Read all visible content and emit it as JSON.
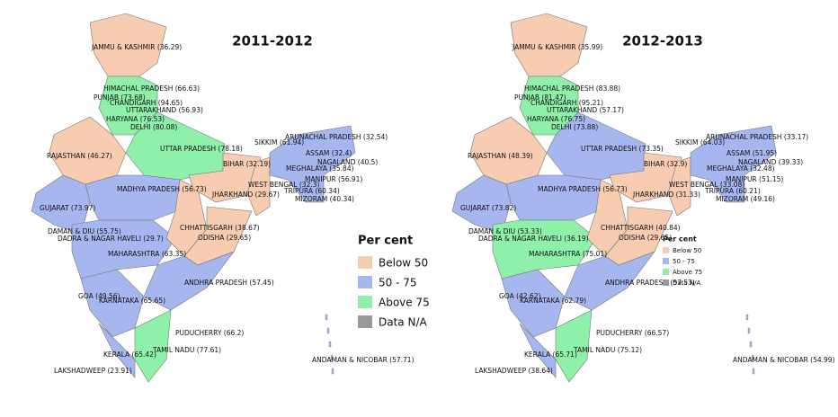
{
  "maps": [
    {
      "title": "2011-2012",
      "labels": [
        "JAMMU & KASHMIR (36.29)",
        "HIMACHAL PRADESH (66.63)",
        "PUNJAB (73.68)",
        "CHANDIGARH (94.65)",
        "UTTARAKHAND (56.93)",
        "HARYANA (76.53)",
        "DELHI (80.08)",
        "RAJASTHAN (46.27)",
        "UTTAR PRADESH (78.18)",
        "SIKKIM (61.94)",
        "ARUNACHAL PRADESH (32.54)",
        "ASSAM (32.4)",
        "BIHAR (32.19)",
        "MEGHALAYA (35.84)",
        "NAGALAND (40.5)",
        "MADHYA PRADESH (56.73)",
        "WEST BENGAL (32.3)",
        "MANIPUR (56.91)",
        "JHARKHAND (29.67)",
        "TRIPURA (60.34)",
        "MIZORAM (40.34)",
        "GUJARAT (73.97)",
        "CHHATTISGARH (38.67)",
        "DAMAN & DIU (55.75)",
        "DADRA & NAGAR HAVELI (29.7)",
        "ODISHA (29.65)",
        "MAHARASHTRA (63.35)",
        "ANDHRA PRADESH (57.45)",
        "GOA (49.56)",
        "KARNATAKA (65.65)",
        "PUDUCHERRY (66.2)",
        "TAMIL NADU (77.61)",
        "KERALA (65.42)",
        "LAKSHADWEEP (23.91)",
        "ANDAMAN & NICOBAR (57.71)"
      ],
      "legend": {
        "title": "Per cent",
        "items": [
          "Below 50",
          "50 - 75",
          "Above 75",
          "Data N/A"
        ]
      }
    },
    {
      "title": "2012-2013",
      "labels": [
        "JAMMU & KASHMIR (35.99)",
        "HIMACHAL PRADESH (83.88)",
        "PUNJAB (81.47)",
        "CHANDIGARH (95.21)",
        "UTTARAKHAND (57.17)",
        "HARYANA (76.75)",
        "DELHI (73.88)",
        "RAJASTHAN (48.39)",
        "UTTAR PRADESH (73.35)",
        "SIKKIM (64.03)",
        "ARUNACHAL PRADESH (33.17)",
        "ASSAM (51.95)",
        "BIHAR (32.9)",
        "MEGHALAYA (32.48)",
        "NAGALAND (39.33)",
        "MADHYA PRADESH (56.73)",
        "WEST BENGAL (33.08)",
        "MANIPUR (51.15)",
        "JHARKHAND (31.33)",
        "TRIPURA (60.21)",
        "MIZORAM (49.16)",
        "GUJARAT (73.82)",
        "CHHATTISGARH (40.84)",
        "DAMAN & DIU (53.33)",
        "DADRA & NAGAR HAVELI (36.19)",
        "ODISHA (29.65)",
        "MAHARASHTRA (75.01)",
        "ANDHRA PRADESH (57.53)",
        "GOA (42.62)",
        "KARNATAKA (62.79)",
        "PUDUCHERRY (66.57)",
        "TAMIL NADU (75.12)",
        "KERALA (65.71)",
        "LAKSHADWEEP (38.64)",
        "ANDAMAN & NICOBAR (54.99)"
      ],
      "legend": {
        "title": "Per cent",
        "items": [
          "Below 50",
          "50 - 75",
          "Above 75",
          "Data N/A"
        ]
      }
    }
  ]
}
